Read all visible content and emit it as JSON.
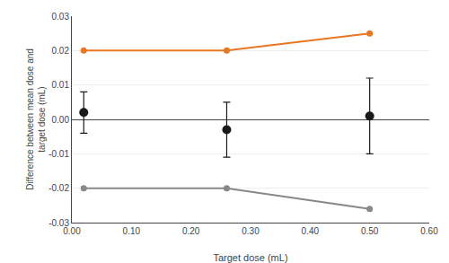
{
  "chart_data": {
    "type": "line",
    "xlabel": "Target dose (mL)",
    "ylabel": "Difference between mean dose and\ntarget dose (mL)",
    "x": [
      0.02,
      0.26,
      0.5
    ],
    "series": [
      {
        "type": "line",
        "color": "#E87722",
        "marker": "circle",
        "line_style": "solid",
        "values": [
          0.02,
          0.02,
          0.025
        ]
      },
      {
        "type": "line",
        "color": "#888888",
        "marker": "circle",
        "line_style": "solid",
        "values": [
          -0.02,
          -0.02,
          -0.026
        ]
      },
      {
        "type": "scatter",
        "color": "#1a1a1a",
        "marker": "circle",
        "values": [
          0.002,
          -0.003,
          0.001
        ],
        "errors": [
          0.006,
          0.008,
          0.011
        ]
      }
    ],
    "xlim": [
      0.0,
      0.6
    ],
    "ylim": [
      -0.03,
      0.03
    ],
    "xticks": [
      {
        "value": 0.0,
        "label": "0.00"
      },
      {
        "value": 0.1,
        "label": "0.10"
      },
      {
        "value": 0.2,
        "label": "0.20"
      },
      {
        "value": 0.3,
        "label": "0.30"
      },
      {
        "value": 0.4,
        "label": "0.40"
      },
      {
        "value": 0.5,
        "label": "0.50"
      },
      {
        "value": 0.6,
        "label": "0.60"
      }
    ],
    "yticks": [
      -0.03,
      -0.02,
      -0.01,
      {
        "value": 0.0,
        "label": "0.00"
      },
      0.01,
      0.02,
      0.03
    ],
    "grid": "y"
  }
}
